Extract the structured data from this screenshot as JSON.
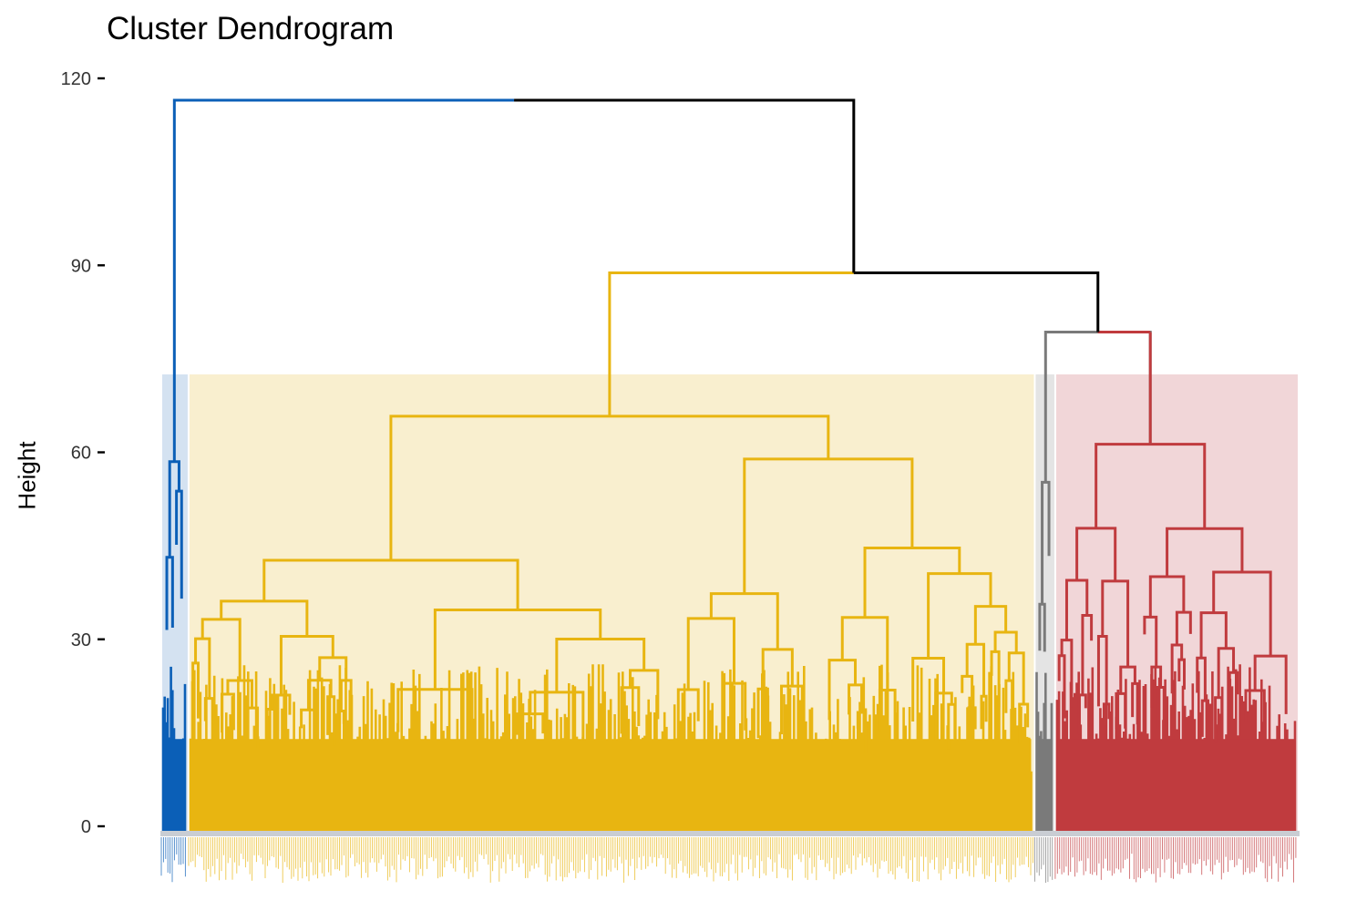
{
  "chart_data": {
    "type": "dendrogram",
    "title": "Cluster Dendrogram",
    "xlabel": "",
    "ylabel": "Height",
    "ylim": [
      0,
      120
    ],
    "y_ticks": [
      "0",
      "30",
      "60",
      "90",
      "120"
    ],
    "y_tick_values": [
      0,
      30,
      60,
      90,
      120
    ],
    "grid": false,
    "leaf_labels_legible": false,
    "clusters": [
      {
        "color": "#0b5fb7",
        "band_color": "#d4e2f1",
        "leaf_share": 0.024,
        "top_height": 58.5
      },
      {
        "color": "#e8b511",
        "band_color": "#f9efcf",
        "leaf_share": 0.744,
        "top_height": 65.8
      },
      {
        "color": "#7a7a7a",
        "band_color": "#e4e4e4",
        "leaf_share": 0.018,
        "top_height": 55.2
      },
      {
        "color": "#c03b3e",
        "band_color": "#f1d6d8",
        "leaf_share": 0.214,
        "top_height": 61.3
      }
    ],
    "cut_height": 72.5,
    "merges": [
      {
        "name": "root",
        "height": 116.5,
        "color": "#000000"
      },
      {
        "name": "gold-vs-gray-red",
        "height": 88.8,
        "color": "#000000"
      },
      {
        "name": "gray-vs-red",
        "height": 79.3,
        "color": "#000000"
      }
    ]
  }
}
